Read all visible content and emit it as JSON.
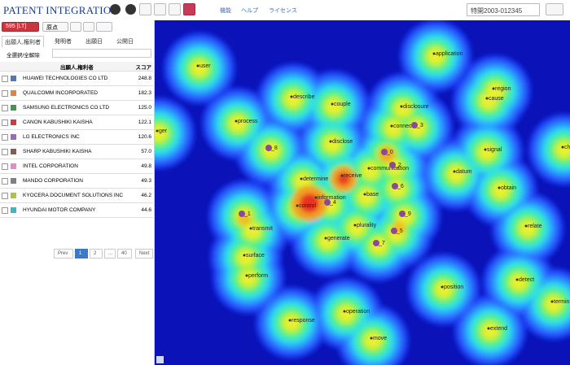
{
  "header": {
    "logo": "PATENT INTEGRATION",
    "menus": [
      "機能",
      "ヘルプ",
      "ライセンス"
    ],
    "search": "特開2003-012345"
  },
  "toolbar": {
    "count_button": "595 [LT]",
    "origin_button": "原点"
  },
  "tabs": [
    "出願人,権利者",
    "発明者",
    "出願日",
    "公開日"
  ],
  "select_all": "全選択/全解除",
  "table": {
    "columns": [
      "出願人,権利者",
      "スコア"
    ],
    "rows": [
      {
        "name": "HUAWEI TECHNOLOGIES CO LTD",
        "score": "248.8",
        "color": "#4a7ab8"
      },
      {
        "name": "QUALCOMM INCORPORATED",
        "score": "182.3",
        "color": "#e8823a"
      },
      {
        "name": "SAMSUNG ELECTRONICS CO LTD",
        "score": "125.0",
        "color": "#3c9a4a"
      },
      {
        "name": "CANON KABUSHIKI KAISHA",
        "score": "122.1",
        "color": "#d03a3a"
      },
      {
        "name": "LG ELECTRONICS INC",
        "score": "120.6",
        "color": "#9a6ac0"
      },
      {
        "name": "SHARP KABUSHIKI KAISHA",
        "score": "57.0",
        "color": "#8a5a4a"
      },
      {
        "name": "INTEL CORPORATION",
        "score": "49.8",
        "color": "#e88ac8"
      },
      {
        "name": "MANDO CORPORATION",
        "score": "49.3",
        "color": "#808080"
      },
      {
        "name": "KYOCERA DOCUMENT SOLUTIONS INC",
        "score": "46.2",
        "color": "#b8c038"
      },
      {
        "name": "HYUNDAI MOTOR COMPANY",
        "score": "44.6",
        "color": "#3ab8c8"
      }
    ]
  },
  "pagination": [
    "Prev",
    "1",
    "2",
    "...",
    "40",
    "Next"
  ],
  "map_labels": [
    "user",
    "application",
    "describe",
    "couple",
    "region",
    "cause",
    "disclosure",
    "process",
    "connect",
    "_3",
    "signal",
    "disclose",
    "_8",
    "_0",
    "communication",
    "_2",
    "datum",
    "determine",
    "receive",
    "obtain",
    "_6",
    "information",
    "base",
    "control",
    "_4",
    "_9",
    "_1",
    "transmit",
    "plurality",
    "relate",
    "_5",
    "generate",
    "_7",
    "surface",
    "perform",
    "detect",
    "position",
    "terminal",
    "operation",
    "response",
    "extend",
    "move",
    "ger",
    "cha"
  ]
}
